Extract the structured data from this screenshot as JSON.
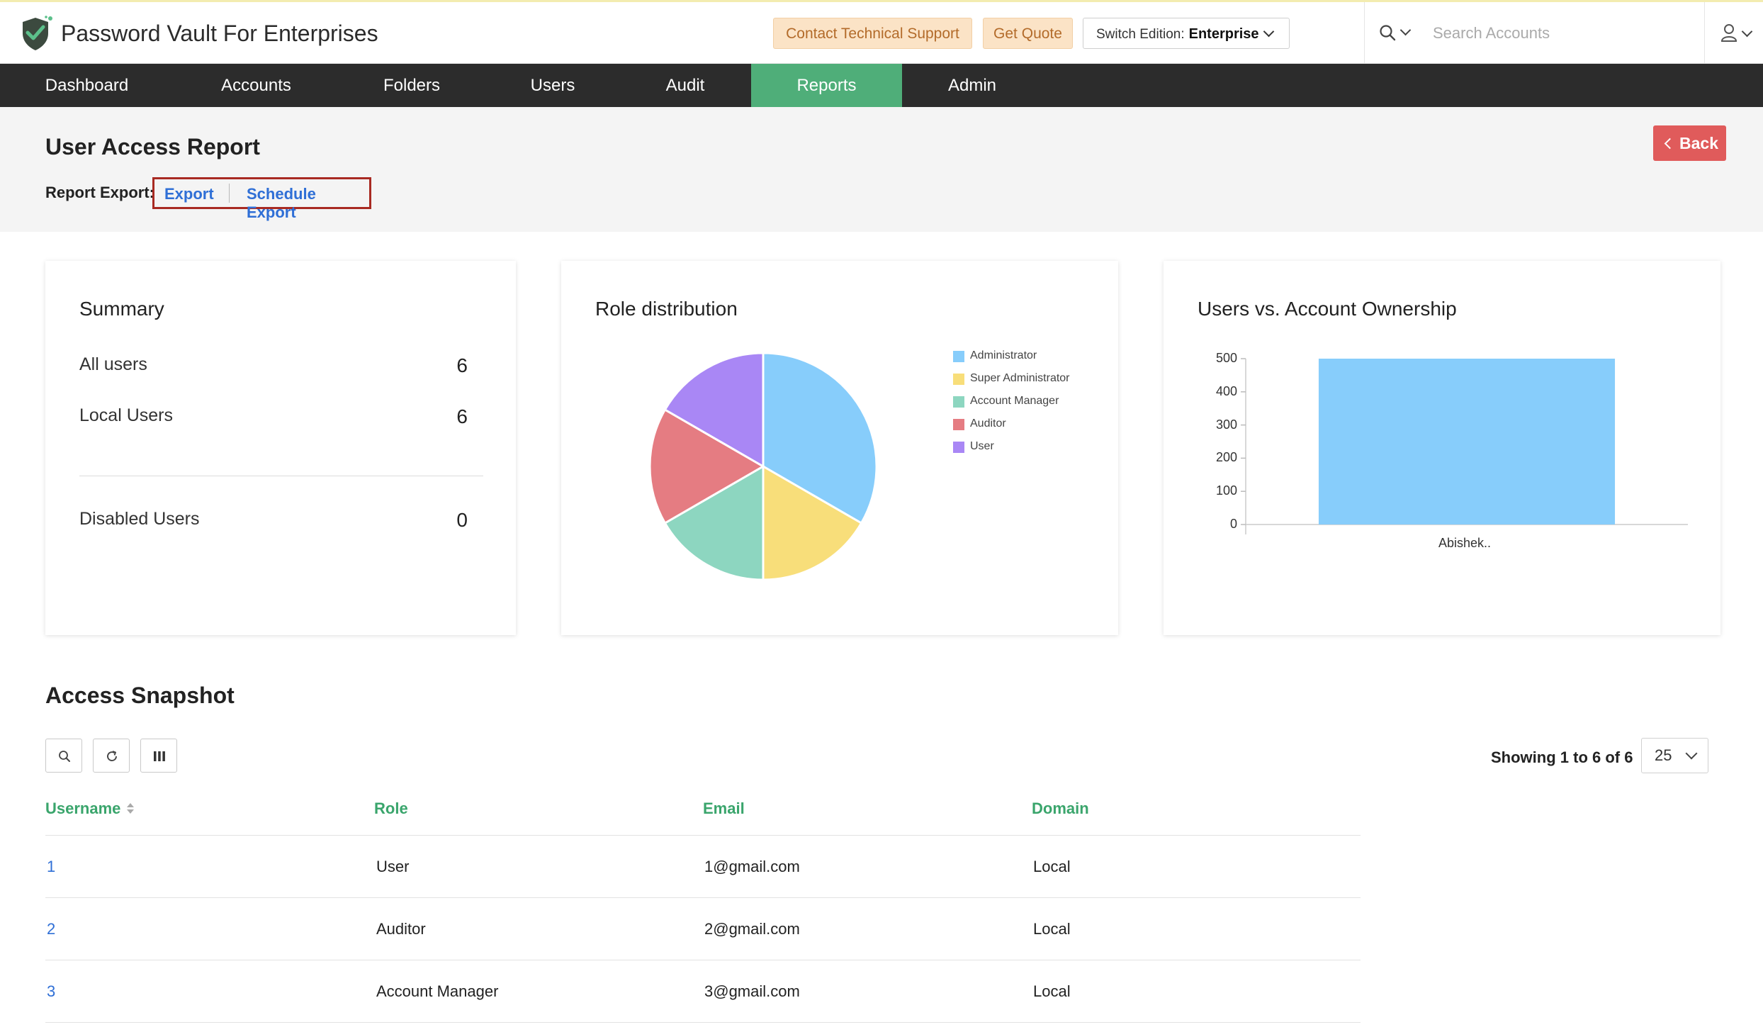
{
  "app": {
    "title": "Password Vault For Enterprises"
  },
  "header": {
    "contact_support": "Contact Technical Support",
    "get_quote": "Get Quote",
    "edition_label": "Switch Edition:",
    "edition_value": "Enterprise",
    "search_placeholder": "Search Accounts"
  },
  "nav": {
    "items": [
      {
        "label": "Dashboard"
      },
      {
        "label": "Accounts"
      },
      {
        "label": "Folders"
      },
      {
        "label": "Users"
      },
      {
        "label": "Audit"
      },
      {
        "label": "Reports",
        "active": true
      },
      {
        "label": "Admin"
      }
    ]
  },
  "page": {
    "title": "User Access Report",
    "export_label": "Report Export:",
    "export_link": "Export",
    "schedule_export_link": "Schedule Export",
    "back": "Back"
  },
  "summary": {
    "title": "Summary",
    "all_users_label": "All users",
    "all_users_value": "6",
    "local_users_label": "Local Users",
    "local_users_value": "6",
    "disabled_users_label": "Disabled Users",
    "disabled_users_value": "0"
  },
  "chart_data": [
    {
      "type": "pie",
      "title": "Role distribution",
      "legend_position": "right",
      "slices": [
        {
          "name": "Administrator",
          "value": 2,
          "color": "#87cdfb"
        },
        {
          "name": "Super Administrator",
          "value": 1,
          "color": "#f8de7a"
        },
        {
          "name": "Account Manager",
          "value": 1,
          "color": "#8dd6c0"
        },
        {
          "name": "Auditor",
          "value": 1,
          "color": "#e57c82"
        },
        {
          "name": "User",
          "value": 1,
          "color": "#a987f5"
        }
      ]
    },
    {
      "type": "bar",
      "title": "Users vs. Account Ownership",
      "categories": [
        "Abishek.."
      ],
      "values": [
        500
      ],
      "ylim": [
        0,
        500
      ],
      "yticks": [
        0,
        100,
        200,
        300,
        400,
        500
      ],
      "xlabel": "",
      "ylabel": "",
      "grid": false,
      "bar_color": "#87cdfb"
    }
  ],
  "snapshot": {
    "title": "Access Snapshot",
    "showing": "Showing 1 to 6 of 6",
    "page_size": "25",
    "columns": [
      "Username",
      "Role",
      "Email",
      "Domain"
    ],
    "rows": [
      {
        "username": "1",
        "role": "User",
        "email": "1@gmail.com",
        "domain": "Local"
      },
      {
        "username": "2",
        "role": "Auditor",
        "email": "2@gmail.com",
        "domain": "Local"
      },
      {
        "username": "3",
        "role": "Account Manager",
        "email": "3@gmail.com",
        "domain": "Local"
      }
    ]
  }
}
